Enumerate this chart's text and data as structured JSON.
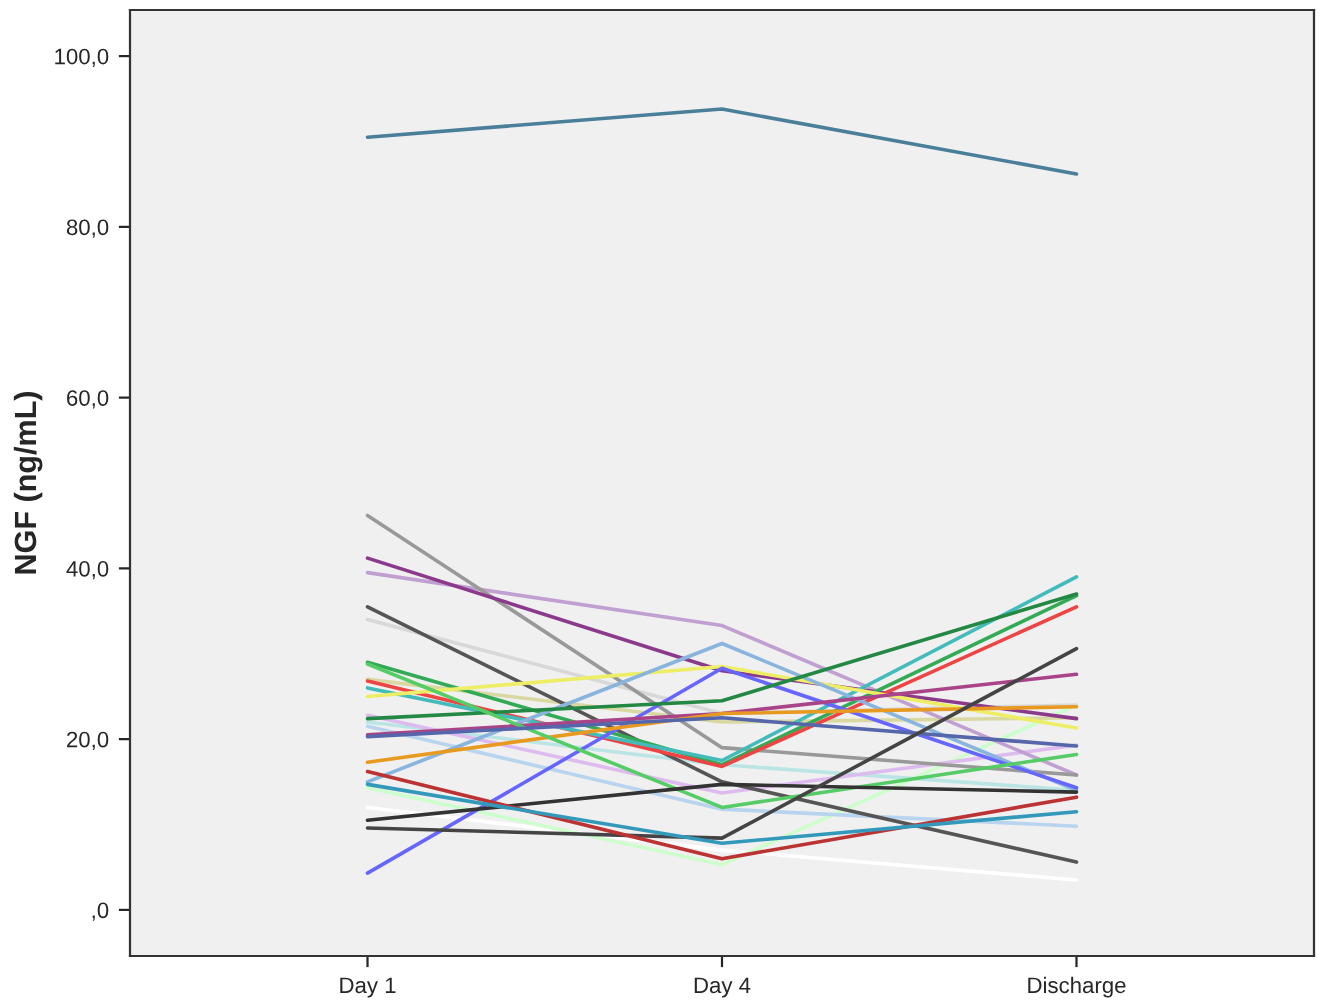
{
  "chart_data": {
    "type": "line",
    "ylabel": "NGF (ng/mL)",
    "categories": [
      "Day 1",
      "Day 4",
      "Discharge"
    ],
    "ylim": [
      -5.4,
      105.4
    ],
    "yticks": [
      {
        "value": 0,
        "label": ",0"
      },
      {
        "value": 20,
        "label": "20,0"
      },
      {
        "value": 40,
        "label": "40,0"
      },
      {
        "value": 60,
        "label": "60,0"
      },
      {
        "value": 80,
        "label": "80,0"
      },
      {
        "value": 100,
        "label": "100,0"
      }
    ],
    "grid": false,
    "legend": false,
    "marker": "none",
    "line_style": "solid",
    "series": [
      {
        "color": "#ffffff",
        "values": [
          12,
          7,
          3.5
        ]
      },
      {
        "color": "#ccffcc",
        "values": [
          14.3,
          5.3,
          24
        ]
      },
      {
        "color": "#d8d8d8",
        "values": [
          34,
          23,
          24
        ]
      },
      {
        "color": "#b8d4ee",
        "values": [
          21.5,
          11.8,
          9.8
        ]
      },
      {
        "color": "#bbe5e5",
        "values": [
          22,
          17,
          14
        ]
      },
      {
        "color": "#d8d8a0",
        "values": [
          27,
          22,
          22.5
        ]
      },
      {
        "color": "#ddbbee",
        "values": [
          22.8,
          13.7,
          19.3
        ]
      },
      {
        "color": "#c0a0d0",
        "values": [
          39.5,
          33.3,
          15.8
        ]
      },
      {
        "color": "#4a7f99",
        "values": [
          90.5,
          93.8,
          86.2
        ]
      },
      {
        "color": "#999999",
        "values": [
          46.2,
          19,
          15.8
        ]
      },
      {
        "color": "#8b3a8b",
        "values": [
          41.2,
          28,
          22.4
        ]
      },
      {
        "color": "#555555",
        "values": [
          35.5,
          15,
          5.6
        ]
      },
      {
        "color": "#33aa55",
        "values": [
          29,
          17,
          36.8
        ]
      },
      {
        "color": "#ee4444",
        "values": [
          26.8,
          16.8,
          35.5
        ]
      },
      {
        "color": "#44bbbb",
        "values": [
          26,
          17.5,
          39
        ]
      },
      {
        "color": "#eeee66",
        "values": [
          25,
          28.5,
          21.3
        ]
      },
      {
        "color": "#88b4dd",
        "values": [
          15,
          31.2,
          14
        ]
      },
      {
        "color": "#6666ff",
        "values": [
          4.3,
          28.3,
          14.3
        ]
      },
      {
        "color": "#aa4488",
        "values": [
          20.5,
          23,
          27.6
        ]
      },
      {
        "color": "#e89a20",
        "values": [
          17.3,
          23,
          23.8
        ]
      },
      {
        "color": "#228844",
        "values": [
          22.4,
          24.5,
          37
        ]
      },
      {
        "color": "#55cc66",
        "values": [
          28.8,
          12,
          18.2
        ]
      },
      {
        "color": "#5566aa",
        "values": [
          20.3,
          22.5,
          19.2
        ]
      },
      {
        "color": "#333333",
        "values": [
          10.5,
          14.7,
          13.8
        ]
      },
      {
        "color": "#444444",
        "values": [
          9.6,
          8.4,
          30.6
        ]
      },
      {
        "color": "#bb3333",
        "values": [
          16.2,
          6,
          13.2
        ]
      },
      {
        "color": "#3399bb",
        "values": [
          14.7,
          7.8,
          11.5
        ]
      }
    ]
  }
}
